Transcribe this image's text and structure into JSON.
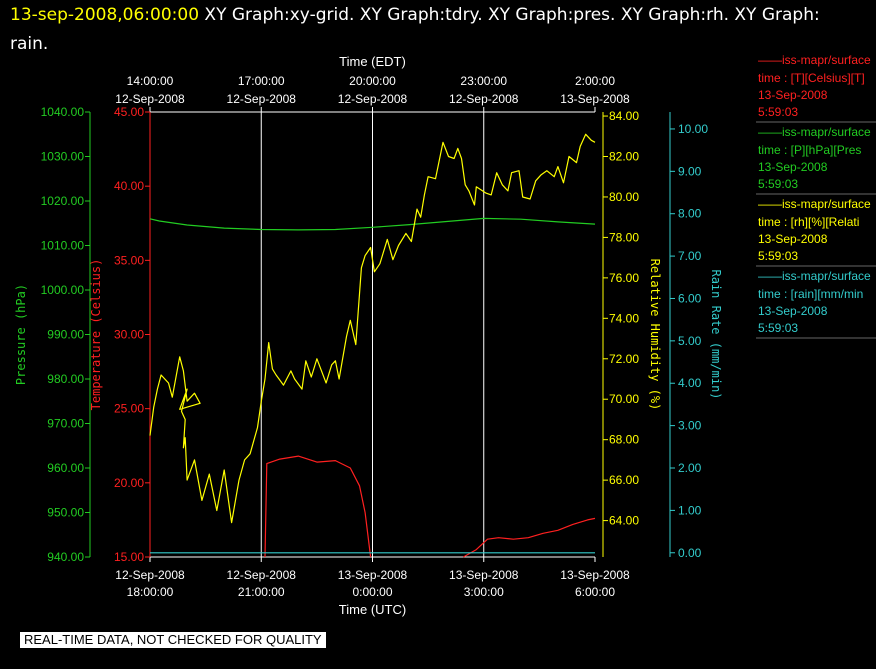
{
  "header": {
    "date": "13-sep-2008,06:00:00",
    "titles": " XY Graph:xy-grid.  XY Graph:tdry.  XY Graph:pres.  XY Graph:rh.  XY Graph: rain."
  },
  "quality_note": "REAL-TIME DATA, NOT CHECKED FOR QUALITY",
  "legend": [
    {
      "title": "——iss-mapr/surface",
      "desc": "time : [T][Celsius][T]",
      "date": "13-Sep-2008",
      "time": "5:59:03",
      "color": "#ff2020"
    },
    {
      "title": "——iss-mapr/surface",
      "desc": "time : [P][hPa][Pres",
      "date": "13-Sep-2008",
      "time": "5:59:03",
      "color": "#22cc22"
    },
    {
      "title": "——iss-mapr/surface",
      "desc": "time : [rh][%][Relati",
      "date": "13-Sep-2008",
      "time": "5:59:03",
      "color": "#ffff00"
    },
    {
      "title": "——iss-mapr/surface",
      "desc": "time : [rain][mm/min",
      "date": "13-Sep-2008",
      "time": "5:59:03",
      "color": "#33cccc"
    }
  ],
  "chart_data": {
    "type": "line",
    "x_axis_top": {
      "label": "Time (EDT)",
      "ticks": [
        {
          "time": "14:00:00",
          "date": "12-Sep-2008"
        },
        {
          "time": "17:00:00",
          "date": "12-Sep-2008"
        },
        {
          "time": "20:00:00",
          "date": "12-Sep-2008"
        },
        {
          "time": "23:00:00",
          "date": "12-Sep-2008"
        },
        {
          "time": "2:00:00",
          "date": "13-Sep-2008"
        }
      ]
    },
    "x_axis_bottom": {
      "label": "Time (UTC)",
      "range": [
        "2008-09-12T18:00:00Z",
        "2008-09-13T06:00:00Z"
      ],
      "ticks": [
        {
          "date": "12-Sep-2008",
          "time": "18:00:00"
        },
        {
          "date": "12-Sep-2008",
          "time": "21:00:00"
        },
        {
          "date": "13-Sep-2008",
          "time": "0:00:00"
        },
        {
          "date": "13-Sep-2008",
          "time": "3:00:00"
        },
        {
          "date": "13-Sep-2008",
          "time": "6:00:00"
        }
      ]
    },
    "y_axes": {
      "pressure": {
        "label": "Pressure (hPa)",
        "range": [
          940,
          1040
        ],
        "ticks": [
          "1040.00",
          "1030.00",
          "1020.00",
          "1010.00",
          "1000.00",
          "990.00",
          "980.00",
          "970.00",
          "960.00",
          "950.00",
          "940.00"
        ],
        "color": "#22cc22"
      },
      "temperature": {
        "label": "Temperature (Celsius)",
        "range": [
          15,
          45
        ],
        "ticks": [
          "45.00",
          "40.00",
          "35.00",
          "30.00",
          "25.00",
          "20.00",
          "15.00"
        ],
        "color": "#ff2020"
      },
      "rh": {
        "label": "Relative Humidity (%)",
        "range": [
          62.2,
          84.2
        ],
        "ticks": [
          "84.00",
          "82.00",
          "80.00",
          "78.00",
          "76.00",
          "74.00",
          "72.00",
          "70.00",
          "68.00",
          "66.00",
          "64.00"
        ],
        "color": "#ffff00"
      },
      "rain": {
        "label": "Rain Rate (mm/min)",
        "range": [
          -0.1,
          10.4
        ],
        "ticks": [
          "10.00",
          "9.00",
          "8.00",
          "7.00",
          "6.00",
          "5.00",
          "4.00",
          "3.00",
          "2.00",
          "1.00",
          "0.00"
        ],
        "color": "#33cccc"
      }
    },
    "grid": "vertical",
    "series": [
      {
        "axis": "pressure",
        "points": [
          [
            0,
            1016
          ],
          [
            0.25,
            1015.5
          ],
          [
            1,
            1014.6
          ],
          [
            2,
            1013.9
          ],
          [
            3,
            1013.6
          ],
          [
            4,
            1013.5
          ],
          [
            5,
            1013.6
          ],
          [
            6,
            1014.1
          ],
          [
            7,
            1014.7
          ],
          [
            8,
            1015.4
          ],
          [
            9,
            1016.1
          ],
          [
            10,
            1015.9
          ],
          [
            11,
            1015.3
          ],
          [
            12,
            1014.8
          ]
        ]
      },
      {
        "axis": "temperature",
        "points": [
          [
            3.1,
            15
          ],
          [
            3.15,
            21.3
          ],
          [
            3.5,
            21.6
          ],
          [
            4,
            21.8
          ],
          [
            4.5,
            21.4
          ],
          [
            5,
            21.5
          ],
          [
            5.4,
            21
          ],
          [
            5.65,
            19.8
          ],
          [
            5.8,
            18
          ],
          [
            5.95,
            15
          ]
        ]
      },
      {
        "axis": "temperature",
        "points": [
          [
            8.45,
            15
          ],
          [
            8.8,
            15.5
          ],
          [
            9.1,
            16.2
          ],
          [
            9.4,
            16.3
          ],
          [
            9.8,
            16.2
          ],
          [
            10.2,
            16.3
          ],
          [
            10.6,
            16.6
          ],
          [
            11,
            16.8
          ],
          [
            11.4,
            17.2
          ],
          [
            11.8,
            17.5
          ],
          [
            12,
            17.6
          ]
        ]
      },
      {
        "axis": "rh",
        "points": [
          [
            0,
            68.2
          ],
          [
            0.1,
            69.6
          ],
          [
            0.2,
            70.5
          ],
          [
            0.3,
            71.2
          ],
          [
            0.5,
            70.8
          ],
          [
            0.6,
            70.1
          ],
          [
            0.8,
            72.1
          ],
          [
            0.9,
            71.4
          ],
          [
            1.0,
            69.9
          ],
          [
            1.2,
            70.3
          ],
          [
            1.35,
            69.8
          ],
          [
            0.8,
            69.5
          ],
          [
            1.0,
            70.5
          ],
          [
            0.85,
            69.4
          ],
          [
            0.95,
            69.0
          ],
          [
            0.9,
            67.6
          ],
          [
            0.95,
            68.1
          ],
          [
            1.0,
            66.0
          ],
          [
            1.2,
            67.0
          ],
          [
            1.4,
            65.0
          ],
          [
            1.6,
            66.3
          ],
          [
            1.8,
            64.5
          ],
          [
            2.0,
            66.5
          ],
          [
            2.2,
            63.9
          ],
          [
            2.4,
            66.0
          ],
          [
            2.55,
            67.0
          ],
          [
            2.7,
            67.3
          ],
          [
            2.9,
            68.6
          ],
          [
            3.0,
            69.9
          ],
          [
            3.1,
            71.0
          ],
          [
            3.2,
            72.8
          ],
          [
            3.3,
            71.5
          ],
          [
            3.4,
            71.2
          ],
          [
            3.6,
            70.7
          ],
          [
            3.8,
            71.4
          ],
          [
            3.9,
            71.0
          ],
          [
            4.1,
            70.5
          ],
          [
            4.2,
            71.9
          ],
          [
            4.35,
            71.1
          ],
          [
            4.5,
            72.0
          ],
          [
            4.75,
            70.8
          ],
          [
            4.9,
            71.7
          ],
          [
            5.0,
            71.9
          ],
          [
            5.1,
            71.0
          ],
          [
            5.3,
            73.1
          ],
          [
            5.4,
            73.9
          ],
          [
            5.55,
            72.7
          ],
          [
            5.7,
            76.5
          ],
          [
            5.8,
            77.1
          ],
          [
            5.95,
            77.5
          ],
          [
            6.05,
            76.3
          ],
          [
            6.2,
            76.7
          ],
          [
            6.4,
            77.9
          ],
          [
            6.55,
            76.9
          ],
          [
            6.7,
            77.6
          ],
          [
            6.9,
            78.2
          ],
          [
            7.05,
            77.8
          ],
          [
            7.2,
            79.4
          ],
          [
            7.3,
            79.0
          ],
          [
            7.4,
            80.1
          ],
          [
            7.5,
            81.0
          ],
          [
            7.7,
            80.9
          ],
          [
            7.9,
            82.7
          ],
          [
            8.05,
            82.0
          ],
          [
            8.2,
            81.9
          ],
          [
            8.3,
            82.4
          ],
          [
            8.4,
            81.9
          ],
          [
            8.5,
            80.6
          ],
          [
            8.6,
            80.3
          ],
          [
            8.75,
            79.6
          ],
          [
            8.8,
            80.5
          ],
          [
            9.05,
            80.2
          ],
          [
            9.2,
            80.1
          ],
          [
            9.35,
            81.2
          ],
          [
            9.5,
            80.6
          ],
          [
            9.65,
            80.3
          ],
          [
            9.75,
            81.2
          ],
          [
            9.95,
            81.3
          ],
          [
            10.05,
            80.0
          ],
          [
            10.25,
            79.9
          ],
          [
            10.4,
            80.8
          ],
          [
            10.55,
            81.1
          ],
          [
            10.7,
            81.3
          ],
          [
            10.9,
            81.0
          ],
          [
            11.0,
            81.5
          ],
          [
            11.15,
            80.7
          ],
          [
            11.3,
            82.0
          ],
          [
            11.5,
            81.7
          ],
          [
            11.6,
            82.5
          ],
          [
            11.75,
            83.1
          ],
          [
            11.9,
            82.8
          ],
          [
            12.0,
            82.7
          ]
        ]
      },
      {
        "axis": "rain",
        "points": [
          [
            0,
            0
          ],
          [
            12,
            0
          ]
        ]
      }
    ]
  }
}
